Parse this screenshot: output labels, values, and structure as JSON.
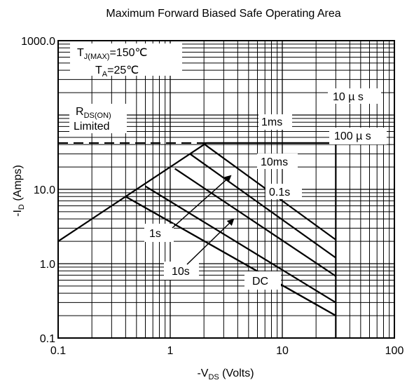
{
  "chart_data": {
    "type": "line",
    "title": "Maximum Forward Biased Safe Operating Area",
    "xlabel": {
      "main": "-V",
      "sub": "DS",
      "suffix": " (Volts)"
    },
    "ylabel": {
      "main": "-I",
      "sub": "D",
      "suffix": " (Amps)"
    },
    "xscale": "log",
    "yscale": "log",
    "xlim": [
      0.1,
      100
    ],
    "ylim": [
      0.1,
      1000
    ],
    "grid": true,
    "xticks": [
      {
        "value": 0.1,
        "label": "0.1"
      },
      {
        "value": 1,
        "label": "1"
      },
      {
        "value": 10,
        "label": "10"
      },
      {
        "value": 100,
        "label": "100"
      }
    ],
    "yticks": [
      {
        "value": 0.1,
        "label": "0.1"
      },
      {
        "value": 1,
        "label": "1.0"
      },
      {
        "value": 10,
        "label": "10.0"
      },
      {
        "value": 1000,
        "label": "1000.0"
      }
    ],
    "series": [
      {
        "name": "RDS(ON) Limited",
        "points": [
          [
            0.1,
            2.0
          ],
          [
            2.1,
            42
          ]
        ]
      },
      {
        "name": "10µs",
        "points": [
          [
            2.1,
            42
          ],
          [
            30,
            42
          ]
        ]
      },
      {
        "name": "100µs",
        "points": [
          [
            2.1,
            42
          ],
          [
            30,
            42
          ]
        ]
      },
      {
        "name": "1ms",
        "points": [
          [
            1.95,
            42
          ],
          [
            30,
            2.1
          ]
        ]
      },
      {
        "name": "10ms",
        "points": [
          [
            1.5,
            30
          ],
          [
            30,
            1.2
          ]
        ]
      },
      {
        "name": "0.1s",
        "points": [
          [
            1.1,
            19
          ],
          [
            30,
            0.68
          ]
        ]
      },
      {
        "name": "1s",
        "points": [
          [
            0.6,
            11
          ],
          [
            30,
            0.3
          ]
        ]
      },
      {
        "name": "10s",
        "points": [
          [
            0.4,
            8
          ],
          [
            30,
            0.2
          ]
        ]
      },
      {
        "name": "DC",
        "points": [
          [
            0.4,
            8
          ],
          [
            30,
            0.2
          ]
        ]
      }
    ],
    "vertical_limit": {
      "x": 30,
      "y": [
        0.1,
        42
      ]
    },
    "current_limit_dashed": {
      "y": 42,
      "x": [
        0.1,
        2.1
      ]
    },
    "annotations": {
      "tj": {
        "main": "T",
        "sub": "J(MAX)",
        "rest": "=150℃"
      },
      "ta": {
        "main": "T",
        "sub": "A",
        "rest": "=25℃"
      },
      "rds": {
        "main": "R",
        "sub": "DS(ON)"
      },
      "limited": "Limited",
      "l10us": "10 µ s",
      "l1ms": "1ms",
      "l100us": "100 µ s",
      "l10ms": "10ms",
      "l01s": "0.1s",
      "l1s": "1s",
      "l10s": "10s",
      "lDC": "DC"
    }
  }
}
